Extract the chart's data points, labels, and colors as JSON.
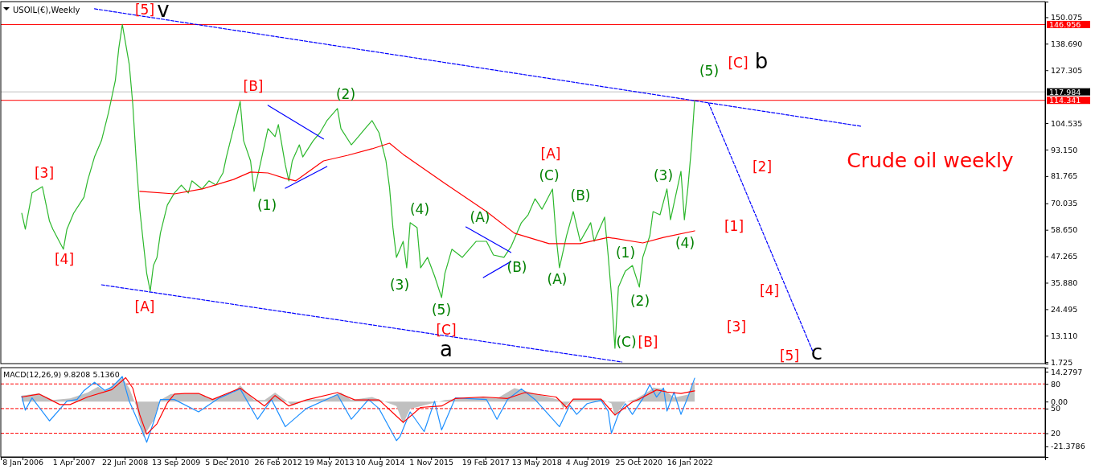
{
  "chart_data": [
    {
      "type": "line",
      "subtitle": "USOIL(€),Weekly",
      "title": "Crude oil weekly",
      "xlim": [
        "2005-07-01",
        "2030-08-01"
      ],
      "ylim": [
        1.1,
        156.8
      ],
      "tick_labels": "y",
      "yticks": [
        150.075,
        {
          "value": 138.69,
          "label": "138.690"
        },
        127.305,
        104.535,
        {
          "value": 93.15,
          "label": "93.150"
        },
        81.765,
        70.035,
        {
          "value": 58.65,
          "label": "58.650"
        },
        47.265,
        {
          "value": 35.88,
          "label": "35.880"
        },
        24.495,
        {
          "value": 13.11,
          "label": "13.110"
        },
        1.725
      ],
      "ref_lines": [
        {
          "axis": "y",
          "value": 146.956,
          "label": "146.956",
          "color": "#ff0000"
        },
        {
          "axis": "y",
          "value": 117.984,
          "label": "117.984",
          "color": "#c0c0c0"
        },
        {
          "axis": "y",
          "value": 114.341,
          "label": "114.341",
          "color": "#ff0000"
        }
      ],
      "series": [
        {
          "color": "#2db82d",
          "x": [
            "2006-01",
            "2006-02",
            "2006-04",
            "2006-07",
            "2006-09",
            "2006-10",
            "2007-01",
            "2007-02",
            "2007-04",
            "2007-07",
            "2007-08",
            "2007-10",
            "2007-12",
            "2008-02",
            "2008-04",
            "2008-05",
            "2008-06",
            "2008-08",
            "2008-09",
            "2008-10",
            "2008-11",
            "2008-12",
            "2009-01",
            "2009-02",
            "2009-03",
            "2009-04",
            "2009-05",
            "2009-07",
            "2009-09",
            "2009-11",
            "2010-01",
            "2010-02",
            "2010-05",
            "2010-07",
            "2010-09",
            "2010-11",
            "2010-12",
            "2011-02",
            "2011-04",
            "2011-05",
            "2011-07",
            "2011-08",
            "2011-10",
            "2011-12",
            "2012-02",
            "2012-03",
            "2012-05",
            "2012-06",
            "2012-07",
            "2012-09",
            "2012-10",
            "2013-01",
            "2013-03",
            "2013-05",
            "2013-08",
            "2013-09",
            "2013-12",
            "2014-02",
            "2014-04",
            "2014-06",
            "2014-08",
            "2014-10",
            "2014-11",
            "2014-12",
            "2015-01",
            "2015-03",
            "2015-04",
            "2015-05",
            "2015-07",
            "2015-08",
            "2015-10",
            "2015-12",
            "2016-02",
            "2016-03",
            "2016-05",
            "2016-08",
            "2016-12",
            "2017-03",
            "2017-05",
            "2017-08",
            "2017-10",
            "2018-01",
            "2018-03",
            "2018-05",
            "2018-07",
            "2018-10",
            "2018-11",
            "2018-12",
            "2019-02",
            "2019-04",
            "2019-06",
            "2019-09",
            "2019-10",
            "2020-01",
            "2020-02",
            "2020-03",
            "2020-04",
            "2020-05",
            "2020-07",
            "2020-09",
            "2020-11",
            "2020-12",
            "2021-02",
            "2021-03",
            "2021-05",
            "2021-07",
            "2021-08",
            "2021-11",
            "2021-12",
            "2022-01",
            "2022-02",
            "2022-03"
          ],
          "values": [
            65.8,
            58.9,
            74.5,
            77.2,
            62.4,
            58.9,
            50.3,
            58.9,
            65.8,
            72.7,
            79.7,
            90.0,
            97.0,
            109.1,
            122.9,
            136.7,
            147.0,
            129.8,
            112.5,
            88.3,
            67.5,
            53.7,
            39.9,
            32.3,
            43.3,
            46.8,
            57.2,
            69.3,
            74.5,
            77.9,
            74.5,
            79.7,
            76.2,
            79.7,
            77.9,
            83.1,
            90.0,
            102.2,
            113.9,
            97.0,
            88.3,
            75.2,
            88.3,
            102.2,
            98.7,
            103.9,
            86.6,
            79.7,
            88.3,
            95.2,
            90.0,
            97.0,
            100.4,
            105.6,
            110.8,
            102.2,
            95.2,
            98.7,
            102.2,
            105.6,
            100.4,
            88.3,
            76.9,
            59.6,
            46.8,
            53.7,
            42.3,
            61.7,
            59.6,
            42.3,
            46.8,
            38.8,
            29.5,
            39.9,
            50.3,
            46.8,
            53.7,
            53.7,
            47.8,
            46.8,
            51.3,
            61.7,
            65.1,
            72.0,
            67.5,
            76.2,
            56.1,
            42.3,
            56.1,
            66.5,
            53.7,
            61.7,
            53.7,
            64.1,
            47.8,
            30.5,
            7.7,
            34.0,
            40.9,
            43.3,
            34.0,
            46.8,
            56.1,
            66.5,
            65.1,
            76.2,
            63.0,
            83.8,
            63.0,
            76.9,
            94.2,
            114.3
          ]
        },
        {
          "color": "#ff0000",
          "x": [
            "2008-11",
            "2009-09",
            "2010-05",
            "2011-02",
            "2011-07",
            "2011-12",
            "2012-05",
            "2012-08",
            "2013-04",
            "2013-11",
            "2014-06",
            "2014-11",
            "2015-03",
            "2016-03",
            "2017-03",
            "2017-11",
            "2018-09",
            "2019-06",
            "2020-02",
            "2020-12",
            "2021-06",
            "2022-03"
          ],
          "values": [
            75.2,
            74.1,
            76.2,
            80.3,
            83.5,
            83.1,
            80.7,
            79.7,
            88.3,
            90.7,
            93.5,
            95.9,
            91.1,
            78.6,
            66.5,
            57.2,
            52.7,
            52.7,
            55.4,
            53.0,
            55.4,
            58.2
          ]
        },
        {
          "color": "#0000ff",
          "line_style": "dashed",
          "x": [
            "2007-10",
            "2026-03"
          ],
          "values": [
            153.7,
            103.2
          ]
        },
        {
          "color": "#0000ff",
          "line_style": "dashed",
          "x": [
            "2007-12",
            "2020-06"
          ],
          "values": [
            35.0,
            1.8
          ]
        },
        {
          "color": "#0000ff",
          "line_style": "dashed",
          "x": [
            "2022-07",
            "2025-01"
          ],
          "values": [
            113.2,
            6.3
          ]
        },
        {
          "color": "#0000ff",
          "x": [
            "2011-12",
            "2013-04"
          ],
          "values": [
            112.2,
            97.7
          ]
        },
        {
          "color": "#0000ff",
          "x": [
            "2012-05",
            "2013-05"
          ],
          "values": [
            76.5,
            85.9
          ]
        },
        {
          "color": "#0000ff",
          "x": [
            "2016-09",
            "2017-10"
          ],
          "values": [
            59.9,
            48.9
          ]
        },
        {
          "color": "#0000ff",
          "x": [
            "2017-02",
            "2017-10"
          ],
          "values": [
            38.1,
            45.0
          ]
        }
      ],
      "annotations": [
        "[5]",
        "v",
        "[3]",
        "[4]",
        "[A]",
        "[B]",
        "(1)",
        "(2)",
        "(3)",
        "(4)",
        "(5)",
        "[C]",
        "a",
        "(A)",
        "(B)",
        "[A]",
        "(C)",
        "(B)",
        "(A)",
        "(1)",
        "(2)",
        "(C)",
        "[B]",
        "(3)",
        "(4)",
        "(5)",
        "[C]",
        "b",
        "[2]",
        "[1]",
        "[4]",
        "[3]",
        "[5]",
        "c"
      ]
    },
    {
      "type": "line",
      "title": "MACD(12,26,9) 9.8208 5.1360",
      "xlim": [
        "2005-07-01",
        "2030-08-01"
      ],
      "ylim": [
        -26.4,
        16.2
      ],
      "y2lim": [
        -8.8,
        99.8
      ],
      "yticks": [
        {
          "value": 14.2797,
          "label": "14.2797"
        },
        {
          "value": 0,
          "label": "0.00"
        },
        {
          "value": -21.3786,
          "label": "-21.3786"
        }
      ],
      "y2ticks": [
        80,
        50,
        20
      ],
      "xticks": [
        {
          "value": "2006-01-08",
          "label": "8 Jan 2006"
        },
        {
          "value": "2007-04-01",
          "label": "1 Apr 2007"
        },
        {
          "value": "2008-06-22",
          "label": "22 Jun 2008"
        },
        {
          "value": "2009-09-13",
          "label": "13 Sep 2009"
        },
        {
          "value": "2010-12-05",
          "label": "5 Dec 2010"
        },
        {
          "value": "2012-02-26",
          "label": "26 Feb 2012"
        },
        {
          "value": "2013-05-19",
          "label": "19 May 2013"
        },
        {
          "value": "2014-08-10",
          "label": "10 Aug 2014"
        },
        {
          "value": "2015-11-01",
          "label": "1 Nov 2015"
        },
        {
          "value": "2017-02-19",
          "label": "19 Feb 2017"
        },
        {
          "value": "2018-05-13",
          "label": "13 May 2018"
        },
        {
          "value": "2019-08-04",
          "label": "4 Aug 2019"
        },
        {
          "value": "2020-10-25",
          "label": "25 Oct 2020"
        },
        {
          "value": "2022-01-16",
          "label": "16 Jan 2022"
        }
      ],
      "ref_lines": [
        {
          "axis": "y2",
          "value": 80,
          "color": "#ff0000",
          "line_style": "dashed"
        },
        {
          "axis": "y2",
          "value": 50,
          "color": "#ff0000",
          "line_style": "dashed"
        },
        {
          "axis": "y2",
          "value": 20,
          "color": "#ff0000",
          "line_style": "dashed"
        }
      ],
      "series": [
        {
          "type": "area",
          "color": "#c0c0c0",
          "x": [
            "2006-01",
            "2006-06",
            "2006-10",
            "2007-03",
            "2007-08",
            "2007-11",
            "2008-01",
            "2008-06",
            "2008-08",
            "2008-10",
            "2008-12",
            "2009-03",
            "2009-05",
            "2009-08",
            "2010-04",
            "2010-08",
            "2011-02",
            "2011-04",
            "2011-08",
            "2011-11",
            "2012-02",
            "2012-05",
            "2012-07",
            "2012-11",
            "2013-05",
            "2013-09",
            "2013-12",
            "2014-06",
            "2015-01",
            "2015-03",
            "2015-05",
            "2015-10",
            "2016-03",
            "2017-02",
            "2017-06",
            "2017-11",
            "2018-04",
            "2018-12",
            "2019-01",
            "2019-04",
            "2019-12",
            "2020-03",
            "2020-04",
            "2020-07",
            "2020-10",
            "2021-02",
            "2021-03",
            "2021-06",
            "2021-09",
            "2022-01",
            "2022-03"
          ],
          "values": [
            2.9,
            3.9,
            0.8,
            1.5,
            4.3,
            7.1,
            5.0,
            11.4,
            6.4,
            -2.1,
            -16.9,
            -9.1,
            0.8,
            3.6,
            3.9,
            1.0,
            4.3,
            7.8,
            0.8,
            0.8,
            4.3,
            0.8,
            -1.8,
            0.8,
            1.5,
            4.3,
            0.8,
            2.2,
            -2.1,
            -10.6,
            -3.5,
            -1.4,
            0.8,
            2.2,
            1.5,
            6.4,
            4.3,
            0.8,
            -3.2,
            1.2,
            1.2,
            -0.9,
            -7.0,
            -0.2,
            1.2,
            5.3,
            6.7,
            6.0,
            1.9,
            3.3,
            9.8208
          ]
        },
        {
          "color": "#1e90ff",
          "axis": "y2",
          "x": [
            "2006-01",
            "2006-02",
            "2006-04",
            "2006-09",
            "2007-02",
            "2007-05",
            "2007-07",
            "2007-10",
            "2008-01",
            "2008-03",
            "2008-06",
            "2008-08",
            "2008-12",
            "2009-01",
            "2009-03",
            "2009-05",
            "2009-09",
            "2010-04",
            "2010-10",
            "2011-04",
            "2011-09",
            "2012-01",
            "2012-05",
            "2012-11",
            "2013-08",
            "2013-12",
            "2014-05",
            "2014-08",
            "2015-01",
            "2015-02",
            "2015-05",
            "2015-09",
            "2015-12",
            "2016-02",
            "2016-06",
            "2017-03",
            "2017-06",
            "2017-09",
            "2018-01",
            "2018-05",
            "2018-12",
            "2019-03",
            "2019-05",
            "2019-08",
            "2019-12",
            "2020-02",
            "2020-03",
            "2020-05",
            "2020-07",
            "2020-09",
            "2020-12",
            "2021-02",
            "2021-04",
            "2021-06",
            "2021-07",
            "2021-09",
            "2021-11",
            "2022-01",
            "2022-03"
          ],
          "values": [
            65,
            48,
            63,
            35,
            59,
            61,
            72,
            82,
            72,
            76,
            89,
            59,
            20,
            9,
            33,
            61,
            61,
            46,
            63,
            74,
            37,
            61,
            28,
            50,
            67,
            37,
            61,
            50,
            11,
            16,
            46,
            22,
            59,
            24,
            63,
            61,
            37,
            61,
            74,
            61,
            28,
            54,
            43,
            56,
            60,
            47,
            20,
            43,
            56,
            43,
            62,
            79,
            64,
            75,
            47,
            70,
            43,
            64,
            87
          ]
        },
        {
          "color": "#ff0000",
          "x": [
            "2006-01",
            "2006-06",
            "2006-12",
            "2007-03",
            "2007-08",
            "2008-03",
            "2008-07",
            "2008-09",
            "2008-11",
            "2009-01",
            "2009-04",
            "2009-07",
            "2009-09",
            "2009-12",
            "2010-04",
            "2010-08",
            "2011-04",
            "2011-11",
            "2012-02",
            "2012-06",
            "2012-11",
            "2013-08",
            "2014-01",
            "2014-08",
            "2015-03",
            "2015-08",
            "2016-02",
            "2016-06",
            "2017-02",
            "2017-09",
            "2018-02",
            "2018-11",
            "2019-02",
            "2019-04",
            "2019-12",
            "2020-04",
            "2020-09",
            "2020-11",
            "2021-04",
            "2021-07",
            "2021-11",
            "2022-03"
          ],
          "values": [
            2.2,
            3.6,
            -1.4,
            -1.4,
            2.2,
            5.7,
            11.4,
            6.4,
            -6.3,
            -15.5,
            -10.6,
            -0.6,
            3.6,
            3.9,
            3.9,
            1.0,
            6.4,
            -2.1,
            2.9,
            -2.1,
            0.8,
            4.3,
            0.8,
            0.8,
            -9.9,
            -2.8,
            -2.1,
            1.5,
            2.2,
            1.5,
            4.3,
            2.2,
            -2.8,
            1.2,
            1.2,
            -6.4,
            -0.2,
            1.2,
            5.6,
            4.6,
            3.9,
            5.136
          ]
        }
      ]
    }
  ]
}
